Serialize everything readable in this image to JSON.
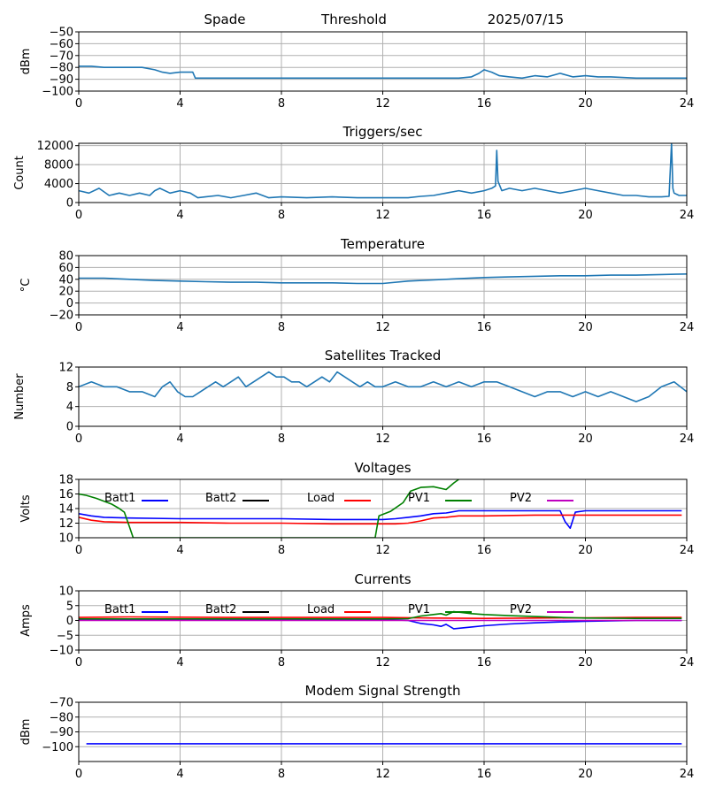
{
  "header": {
    "site": "Spade",
    "mode": "Threshold",
    "date": "2025/07/15"
  },
  "chart_data": [
    {
      "id": "noise",
      "type": "line",
      "title": "",
      "xlabel": "",
      "ylabel": "dBm",
      "xlim": [
        0,
        24
      ],
      "ylim": [
        -100,
        -50
      ],
      "xticks": [
        0,
        4,
        8,
        12,
        16,
        20,
        24
      ],
      "yticks": [
        -100,
        -90,
        -80,
        -70,
        -60,
        -50
      ],
      "grid": true,
      "series": [
        {
          "color": "#1f77b4",
          "x": [
            0,
            0.5,
            1,
            1.5,
            2,
            2.5,
            3,
            3.3,
            3.6,
            4,
            4.5,
            4.6,
            5,
            6,
            7,
            8,
            9,
            10,
            11,
            12,
            13,
            14,
            15,
            15.5,
            15.8,
            16,
            16.3,
            16.6,
            17,
            17.5,
            18,
            18.5,
            19,
            19.5,
            20,
            20.5,
            21,
            22,
            23,
            24
          ],
          "y": [
            -79,
            -79,
            -80,
            -80,
            -80,
            -80,
            -82,
            -84,
            -85,
            -84,
            -84,
            -89,
            -89,
            -89,
            -89,
            -89,
            -89,
            -89,
            -89,
            -89,
            -89,
            -89,
            -89,
            -88,
            -85,
            -82,
            -84,
            -87,
            -88,
            -89,
            -87,
            -88,
            -85,
            -88,
            -87,
            -88,
            -88,
            -89,
            -89,
            -89
          ]
        }
      ]
    },
    {
      "id": "triggers",
      "type": "line",
      "title": "Triggers/sec",
      "xlabel": "",
      "ylabel": "Count",
      "xlim": [
        0,
        24
      ],
      "ylim": [
        0,
        12500
      ],
      "xticks": [
        0,
        4,
        8,
        12,
        16,
        20,
        24
      ],
      "yticks": [
        0,
        4000,
        8000,
        12000
      ],
      "grid": true,
      "series": [
        {
          "color": "#1f77b4",
          "x": [
            0,
            0.4,
            0.8,
            1.2,
            1.6,
            2,
            2.4,
            2.8,
            3,
            3.2,
            3.6,
            4,
            4.4,
            4.7,
            5,
            5.5,
            6,
            6.5,
            7,
            7.5,
            8,
            9,
            10,
            11,
            12,
            13,
            13.5,
            14,
            14.5,
            15,
            15.5,
            16,
            16.3,
            16.45,
            16.5,
            16.55,
            16.7,
            17,
            17.5,
            18,
            18.5,
            19,
            19.5,
            20,
            20.5,
            21,
            21.5,
            22,
            22.5,
            23,
            23.3,
            23.4,
            23.45,
            23.5,
            23.7,
            24
          ],
          "y": [
            2500,
            2000,
            3000,
            1500,
            2000,
            1500,
            2000,
            1500,
            2500,
            3000,
            2000,
            2500,
            2000,
            1000,
            1200,
            1500,
            1000,
            1500,
            2000,
            1000,
            1200,
            1000,
            1200,
            1000,
            1000,
            1000,
            1300,
            1500,
            2000,
            2500,
            2000,
            2500,
            3000,
            3500,
            11000,
            4500,
            2500,
            3000,
            2500,
            3000,
            2500,
            2000,
            2500,
            3000,
            2500,
            2000,
            1500,
            1500,
            1200,
            1200,
            1300,
            12500,
            3000,
            2000,
            1500,
            1500
          ]
        }
      ]
    },
    {
      "id": "temperature",
      "type": "line",
      "title": "Temperature",
      "xlabel": "",
      "ylabel": "°C",
      "xlim": [
        0,
        24
      ],
      "ylim": [
        -20,
        80
      ],
      "xticks": [
        0,
        4,
        8,
        12,
        16,
        20,
        24
      ],
      "yticks": [
        -20,
        0,
        20,
        40,
        60,
        80
      ],
      "grid": true,
      "series": [
        {
          "color": "#1f77b4",
          "x": [
            0,
            1,
            2,
            3,
            4,
            5,
            6,
            7,
            8,
            9,
            10,
            11,
            12,
            13,
            14,
            15,
            16,
            17,
            18,
            19,
            20,
            21,
            22,
            23,
            24
          ],
          "y": [
            42,
            42,
            40,
            38,
            37,
            36,
            35,
            35,
            34,
            34,
            34,
            33,
            33,
            37,
            39,
            41,
            43,
            44,
            45,
            46,
            46,
            47,
            47,
            48,
            49
          ]
        }
      ]
    },
    {
      "id": "satellites",
      "type": "line",
      "title": "Satellites Tracked",
      "xlabel": "",
      "ylabel": "Number",
      "xlim": [
        0,
        24
      ],
      "ylim": [
        0,
        12
      ],
      "xticks": [
        0,
        4,
        8,
        12,
        16,
        20,
        24
      ],
      "yticks": [
        0,
        4,
        8,
        12
      ],
      "grid": true,
      "series": [
        {
          "color": "#1f77b4",
          "x": [
            0,
            0.5,
            1,
            1.5,
            2,
            2.5,
            3,
            3.3,
            3.6,
            3.9,
            4.2,
            4.5,
            4.8,
            5.1,
            5.4,
            5.7,
            6,
            6.3,
            6.6,
            6.9,
            7.2,
            7.5,
            7.8,
            8.1,
            8.4,
            8.7,
            9,
            9.3,
            9.6,
            9.9,
            10.2,
            10.5,
            10.8,
            11.1,
            11.4,
            11.7,
            12,
            12.5,
            13,
            13.5,
            14,
            14.5,
            15,
            15.5,
            16,
            16.5,
            17,
            17.5,
            18,
            18.5,
            19,
            19.5,
            20,
            20.5,
            21,
            21.5,
            22,
            22.5,
            23,
            23.5,
            24
          ],
          "y": [
            8,
            9,
            8,
            8,
            7,
            7,
            6,
            8,
            9,
            7,
            6,
            6,
            7,
            8,
            9,
            8,
            9,
            10,
            8,
            9,
            10,
            11,
            10,
            10,
            9,
            9,
            8,
            9,
            10,
            9,
            11,
            10,
            9,
            8,
            9,
            8,
            8,
            9,
            8,
            8,
            9,
            8,
            9,
            8,
            9,
            9,
            8,
            7,
            6,
            7,
            7,
            6,
            7,
            6,
            7,
            6,
            5,
            6,
            8,
            9,
            7
          ]
        }
      ]
    },
    {
      "id": "voltages",
      "type": "line",
      "title": "Voltages",
      "xlabel": "",
      "ylabel": "Volts",
      "xlim": [
        0,
        24
      ],
      "ylim": [
        10,
        18
      ],
      "xticks": [
        0,
        4,
        8,
        12,
        16,
        20,
        24
      ],
      "yticks": [
        10,
        12,
        14,
        16,
        18
      ],
      "grid": true,
      "legend": "top, one row",
      "series": [
        {
          "name": "Batt1",
          "color": "#0000ff",
          "x": [
            0,
            0.5,
            1,
            2,
            4,
            6,
            8,
            10,
            12,
            12.5,
            13,
            13.5,
            14,
            14.5,
            15,
            16,
            17,
            18,
            19,
            19.2,
            19.4,
            19.6,
            20,
            22,
            23.8
          ],
          "y": [
            13.3,
            13,
            12.8,
            12.7,
            12.6,
            12.6,
            12.6,
            12.5,
            12.5,
            12.6,
            12.8,
            13,
            13.3,
            13.4,
            13.7,
            13.7,
            13.7,
            13.7,
            13.7,
            12.2,
            11.3,
            13.5,
            13.7,
            13.7,
            13.7
          ]
        },
        {
          "name": "Batt2",
          "color": "#000000",
          "x": [],
          "y": []
        },
        {
          "name": "Load",
          "color": "#ff0000",
          "x": [
            0,
            0.5,
            1,
            2,
            4,
            6,
            8,
            10,
            12,
            12.5,
            13,
            13.5,
            14,
            14.5,
            15,
            16,
            18,
            20,
            22,
            23.8
          ],
          "y": [
            12.8,
            12.4,
            12.2,
            12.1,
            12.1,
            12.0,
            12.0,
            11.9,
            11.9,
            11.9,
            12.0,
            12.3,
            12.7,
            12.8,
            13.0,
            13.0,
            13.1,
            13.1,
            13.1,
            13.1
          ]
        },
        {
          "name": "PV1",
          "color": "#008000",
          "x": [
            0,
            0.3,
            0.7,
            1,
            1.3,
            1.6,
            1.8,
            2,
            2.15,
            11.7,
            11.85,
            12.3,
            12.8,
            13.1,
            13.5,
            14,
            14.5,
            14.8,
            15
          ],
          "y": [
            16.0,
            15.8,
            15.4,
            15.0,
            14.6,
            14.0,
            13.5,
            11.5,
            10.0,
            10.0,
            13.0,
            13.6,
            14.8,
            16.4,
            16.9,
            17.0,
            16.6,
            17.5,
            18.0
          ]
        },
        {
          "name": "PV2",
          "color": "#bf00bf",
          "x": [],
          "y": []
        }
      ]
    },
    {
      "id": "currents",
      "type": "line",
      "title": "Currents",
      "xlabel": "",
      "ylabel": "Amps",
      "xlim": [
        0,
        24
      ],
      "ylim": [
        -10,
        10
      ],
      "xticks": [
        0,
        4,
        8,
        12,
        16,
        20,
        24
      ],
      "yticks": [
        -10,
        -5,
        0,
        5,
        10
      ],
      "grid": true,
      "legend": "top, one row",
      "series": [
        {
          "name": "Batt1",
          "color": "#0000ff",
          "x": [
            0,
            2,
            4,
            6,
            8,
            10,
            12,
            13,
            13.5,
            14,
            14.3,
            14.5,
            14.8,
            15.5,
            16,
            17,
            18,
            19,
            20,
            22,
            23.8
          ],
          "y": [
            0.3,
            0.3,
            0.3,
            0.3,
            0.3,
            0.3,
            0.3,
            0,
            -1,
            -1.5,
            -2,
            -1.3,
            -2.8,
            -2.2,
            -1.8,
            -1.2,
            -0.8,
            -0.5,
            -0.3,
            0,
            0
          ]
        },
        {
          "name": "Batt2",
          "color": "#000000",
          "x": [],
          "y": []
        },
        {
          "name": "Load",
          "color": "#ff0000",
          "x": [
            0,
            2,
            4,
            6,
            8,
            10,
            12,
            14,
            16,
            18,
            20,
            22,
            23.8
          ],
          "y": [
            1,
            1.2,
            1.1,
            1,
            1,
            1,
            1,
            0.8,
            0.7,
            0.8,
            0.9,
            1,
            1
          ]
        },
        {
          "name": "PV1",
          "color": "#008000",
          "x": [
            0,
            2,
            4,
            6,
            8,
            10,
            12,
            13,
            13.5,
            14,
            14.3,
            14.5,
            14.8,
            15.5,
            16,
            17,
            18,
            19,
            20,
            22,
            23.8
          ],
          "y": [
            0.5,
            0.5,
            0.5,
            0.5,
            0.5,
            0.5,
            0.5,
            0.6,
            1.5,
            2,
            2.3,
            1.8,
            3,
            2.3,
            2,
            1.6,
            1.3,
            1,
            0.8,
            0.7,
            0.7
          ]
        },
        {
          "name": "PV2",
          "color": "#bf00bf",
          "x": [
            0,
            6,
            12,
            18,
            23.8
          ],
          "y": [
            0,
            0,
            0,
            0,
            0
          ]
        }
      ]
    },
    {
      "id": "modem",
      "type": "line",
      "title": "Modem Signal Strength",
      "xlabel": "",
      "ylabel": "dBm",
      "xlim": [
        0,
        24
      ],
      "ylim": [
        -110,
        -70
      ],
      "xticks": [
        0,
        4,
        8,
        12,
        16,
        20,
        24
      ],
      "yticks": [
        -100,
        -90,
        -80,
        -70
      ],
      "grid": true,
      "series": [
        {
          "color": "#0000ff",
          "x": [
            0.3,
            23.8
          ],
          "y": [
            -98,
            -98
          ]
        }
      ]
    }
  ]
}
